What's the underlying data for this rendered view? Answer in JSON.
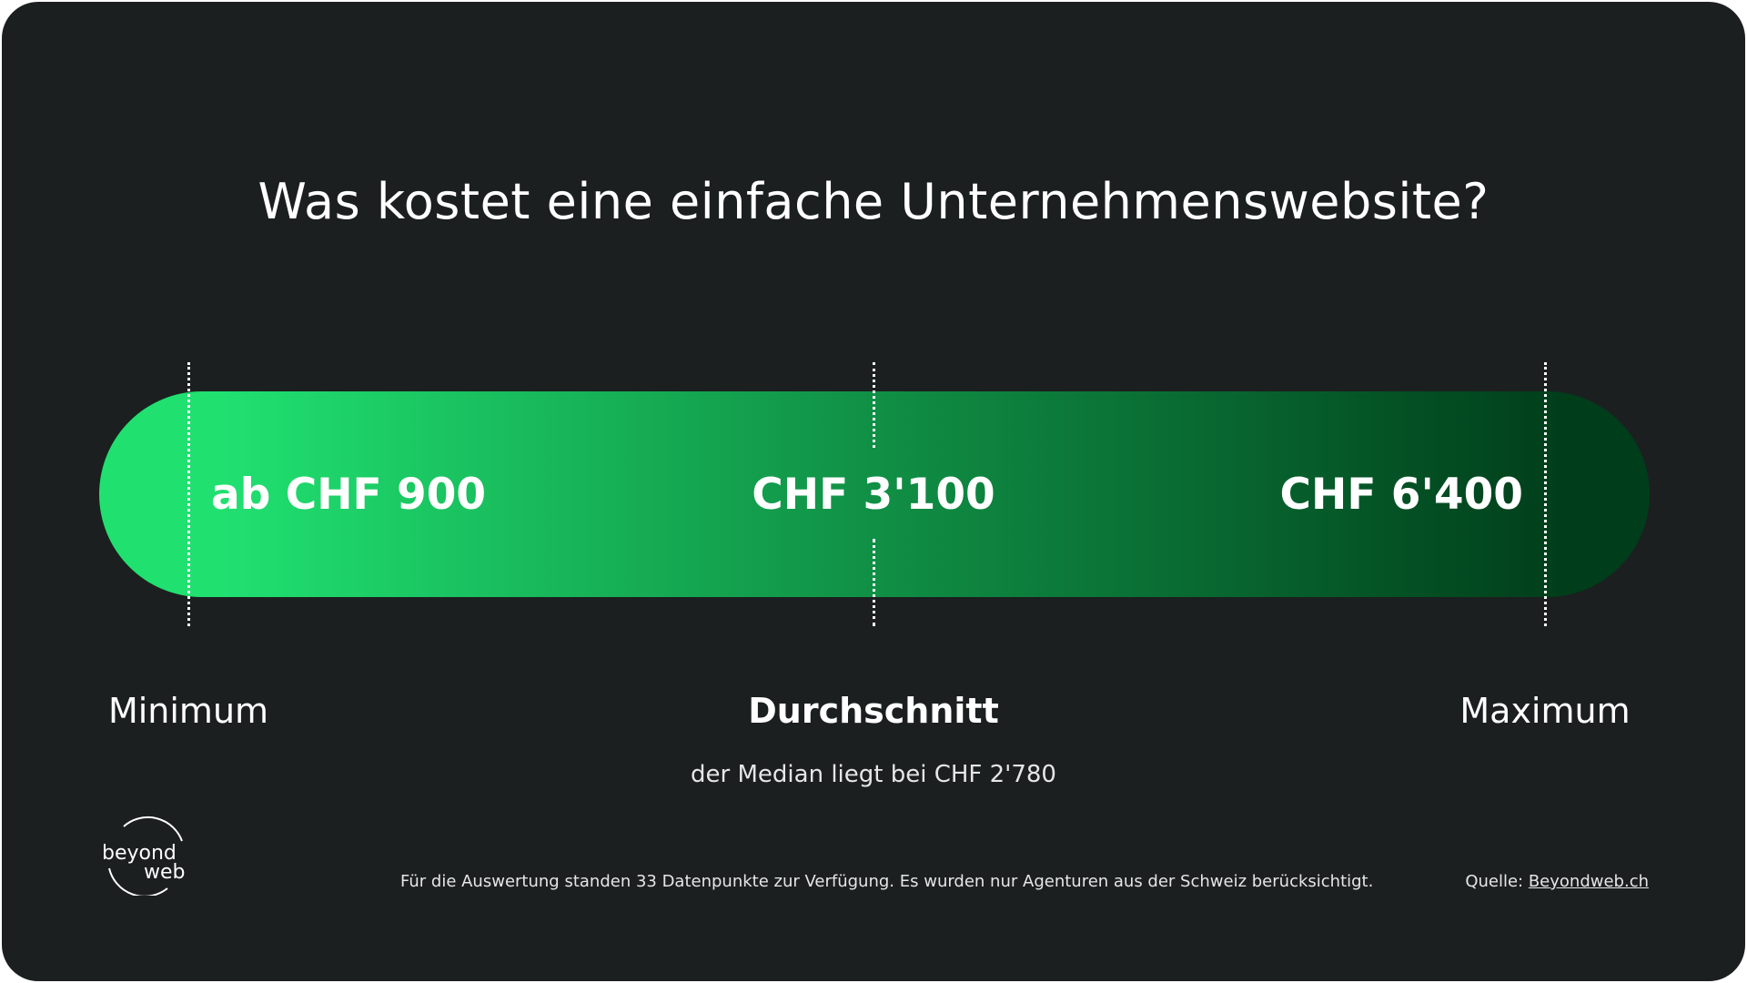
{
  "colors": {
    "background": "#1b1f1f",
    "bar_start": "#20e070",
    "bar_mid": "#12994a",
    "bar_end": "#003d1a",
    "text": "#ffffff"
  },
  "chart_data": {
    "type": "bar",
    "title": "Was kostet eine einfache Unternehmenswebsite?",
    "points": [
      {
        "name": "Minimum",
        "value": 900,
        "label": "ab CHF 900"
      },
      {
        "name": "Durchschnitt",
        "value": 3100,
        "label": "CHF 3'100"
      },
      {
        "name": "Maximum",
        "value": 6400,
        "label": "CHF 6'400"
      }
    ],
    "median_text": "der Median liegt bei CHF 2'780"
  },
  "footer": {
    "note": "Für die Auswertung standen 33 Datenpunkte zur Verfügung. Es wurden nur Agenturen aus der Schweiz berücksichtigt.",
    "source_prefix": "Quelle: ",
    "source_link": "Beyondweb.ch"
  },
  "logo": {
    "line1": "beyond",
    "line2": "web"
  }
}
